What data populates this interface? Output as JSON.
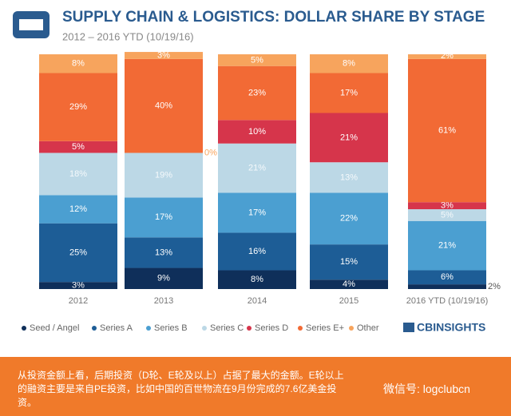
{
  "chart_data": {
    "type": "stacked_bar",
    "title": "SUPPLY CHAIN & LOGISTICS: DOLLAR SHARE BY STAGE",
    "subtitle": "2012 – 2016 YTD (10/19/16)",
    "categories": [
      "2012",
      "2013",
      "2014",
      "2015",
      "2016 YTD (10/19/16)"
    ],
    "series": [
      {
        "name": "Seed / Angel",
        "color": "#0f2f5a",
        "values": [
          3,
          9,
          8,
          4,
          2
        ],
        "value_labels": [
          "3%",
          "9%",
          "8%",
          "4%",
          "2%"
        ]
      },
      {
        "name": "Series A",
        "color": "#1d5d96",
        "values": [
          25,
          13,
          16,
          15,
          6
        ],
        "value_labels": [
          "25%",
          "13%",
          "16%",
          "15%",
          "6%"
        ]
      },
      {
        "name": "Series B",
        "color": "#4b9fd1",
        "values": [
          12,
          17,
          17,
          22,
          21
        ],
        "value_labels": [
          "12%",
          "17%",
          "17%",
          "22%",
          "21%"
        ]
      },
      {
        "name": "Series C",
        "color": "#bcd8e6",
        "values": [
          18,
          19,
          21,
          13,
          5
        ],
        "value_labels": [
          "18%",
          "19%",
          "21%",
          "13%",
          "5%"
        ]
      },
      {
        "name": "Series D",
        "color": "#d6354b",
        "values": [
          5,
          0,
          10,
          21,
          3
        ],
        "value_labels": [
          "5%",
          "0%",
          "10%",
          "21%",
          "3%"
        ]
      },
      {
        "name": "Series E+",
        "color": "#f26a35",
        "values": [
          29,
          40,
          23,
          17,
          61
        ],
        "value_labels": [
          "29%",
          "40%",
          "23%",
          "17%",
          "61%"
        ]
      },
      {
        "name": "Other",
        "color": "#f7a45d",
        "values": [
          8,
          3,
          5,
          8,
          2
        ],
        "value_labels": [
          "8%",
          "3%",
          "5%",
          "8%",
          "2%"
        ]
      }
    ],
    "legend": "bottom"
  },
  "brand": "CBINSIGHTS",
  "caption": "从投资金额上看，后期投资（D轮、E轮及以上）占据了最大的金额。E轮以上的融资主要是来自PE投资，比如中国的百世物流在9月份完成的7.6亿美金投资。",
  "watermark": "微信号: logclubcn"
}
